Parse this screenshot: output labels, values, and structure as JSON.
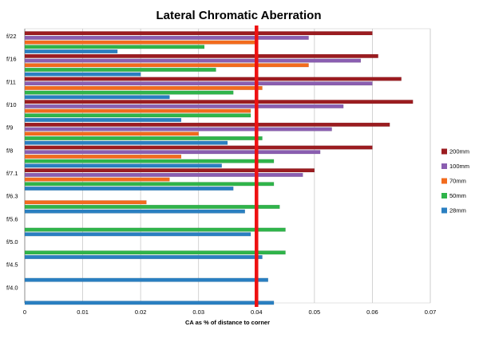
{
  "chart_data": {
    "type": "bar",
    "orientation": "horizontal",
    "title": "Lateral Chromatic Aberration",
    "xlabel": "CA as % of distance  to corner",
    "ylabel": "",
    "xlim": [
      0,
      0.07
    ],
    "x_ticks": [
      "0",
      "0.01",
      "0.02",
      "0.03",
      "0.04",
      "0.05",
      "0.06",
      "0.07"
    ],
    "grid": "vertical",
    "legend_position": "right",
    "categories": [
      "f/22",
      "f/16",
      "f/11",
      "f/10",
      "f/9",
      "f/8",
      "f/7.1",
      "f/6.3",
      "f/5.6",
      "f/5.0",
      "f/4.5",
      "f/4.0"
    ],
    "series": [
      {
        "name": "200mm",
        "color": "#9b1c20",
        "values": [
          0.06,
          0.061,
          0.065,
          0.067,
          0.063,
          0.06,
          0.05,
          null,
          null,
          null,
          null,
          null
        ]
      },
      {
        "name": "100mm",
        "color": "#8a5eb0",
        "values": [
          0.049,
          0.058,
          0.06,
          0.055,
          0.053,
          0.051,
          0.048,
          null,
          null,
          null,
          null,
          null
        ]
      },
      {
        "name": "70mm",
        "color": "#f26b1d",
        "values": [
          0.04,
          0.049,
          0.041,
          0.039,
          0.03,
          0.027,
          0.025,
          0.021,
          null,
          null,
          null,
          null
        ]
      },
      {
        "name": "50mm",
        "color": "#2fb44a",
        "values": [
          0.031,
          0.033,
          0.036,
          0.039,
          0.041,
          0.043,
          0.043,
          0.044,
          0.045,
          0.045,
          null,
          null
        ]
      },
      {
        "name": "28mm",
        "color": "#2a7fc1",
        "values": [
          0.016,
          0.02,
          0.025,
          0.027,
          0.035,
          0.034,
          0.036,
          0.038,
          0.039,
          0.041,
          0.042,
          0.043
        ]
      }
    ],
    "reference_line": {
      "value": 0.04,
      "color": "#ee1111"
    }
  }
}
